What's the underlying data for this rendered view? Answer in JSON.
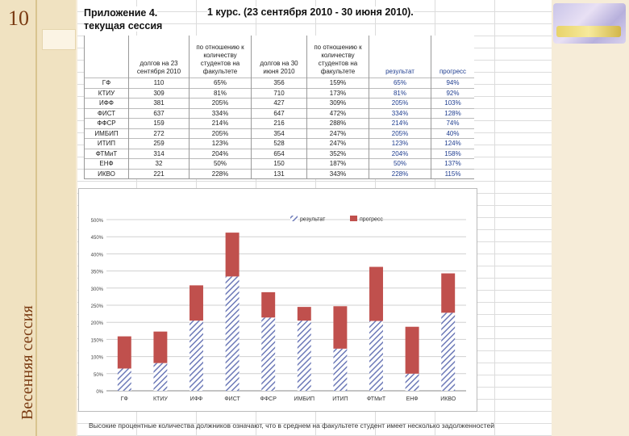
{
  "slide": {
    "number": "10",
    "side_title": "Весенняя сессия"
  },
  "sheet": {
    "title_a": "Приложение 4.",
    "title_b": "1 курс. (23 сентября 2010 - 30 июня 2010).",
    "title_c": "текущая сессия",
    "columns": [
      "",
      "долгов на 23 сентября 2010",
      "по отношению к количеству студентов на факультете",
      "долгов на 30 июня 2010",
      "по отношению к количеству студентов на факультете",
      "результат",
      "прогресс"
    ],
    "rows": [
      [
        "ГФ",
        "110",
        "65%",
        "356",
        "159%",
        "65%",
        "94%"
      ],
      [
        "КТИУ",
        "309",
        "81%",
        "710",
        "173%",
        "81%",
        "92%"
      ],
      [
        "ИФФ",
        "381",
        "205%",
        "427",
        "309%",
        "205%",
        "103%"
      ],
      [
        "ФИСТ",
        "637",
        "334%",
        "647",
        "472%",
        "334%",
        "128%"
      ],
      [
        "ФФСР",
        "159",
        "214%",
        "216",
        "288%",
        "214%",
        "74%"
      ],
      [
        "ИМБИП",
        "272",
        "205%",
        "354",
        "247%",
        "205%",
        "40%"
      ],
      [
        "ИТИП",
        "259",
        "123%",
        "528",
        "247%",
        "123%",
        "124%"
      ],
      [
        "ФТМиТ",
        "314",
        "204%",
        "654",
        "352%",
        "204%",
        "158%"
      ],
      [
        "ЕНФ",
        "32",
        "50%",
        "150",
        "187%",
        "50%",
        "137%"
      ],
      [
        "ИКВО",
        "221",
        "228%",
        "131",
        "343%",
        "228%",
        "115%"
      ]
    ],
    "footnote": "Высокие процентные количества должников означают, что в среднем на факультете студент имеет несколько задолженностей"
  },
  "chart_data": {
    "type": "bar",
    "stacked": true,
    "categories": [
      "ГФ",
      "КТИУ",
      "ИФФ",
      "ФИСТ",
      "ФФСР",
      "ИМБИП",
      "ИТИП",
      "ФТМиТ",
      "ЕНФ",
      "ИКВО"
    ],
    "series": [
      {
        "name": "результат",
        "values": [
          65,
          81,
          205,
          334,
          214,
          205,
          123,
          204,
          50,
          228
        ],
        "color": "#6d7ab8",
        "pattern": "hatched"
      },
      {
        "name": "прогресс",
        "values": [
          94,
          92,
          103,
          128,
          74,
          40,
          124,
          158,
          137,
          115
        ],
        "color": "#c0504d"
      }
    ],
    "yticks": [
      "0%",
      "50%",
      "100%",
      "150%",
      "200%",
      "250%",
      "300%",
      "350%",
      "400%",
      "450%",
      "500%"
    ],
    "ylim": [
      0,
      500
    ],
    "legend": "top-right"
  }
}
